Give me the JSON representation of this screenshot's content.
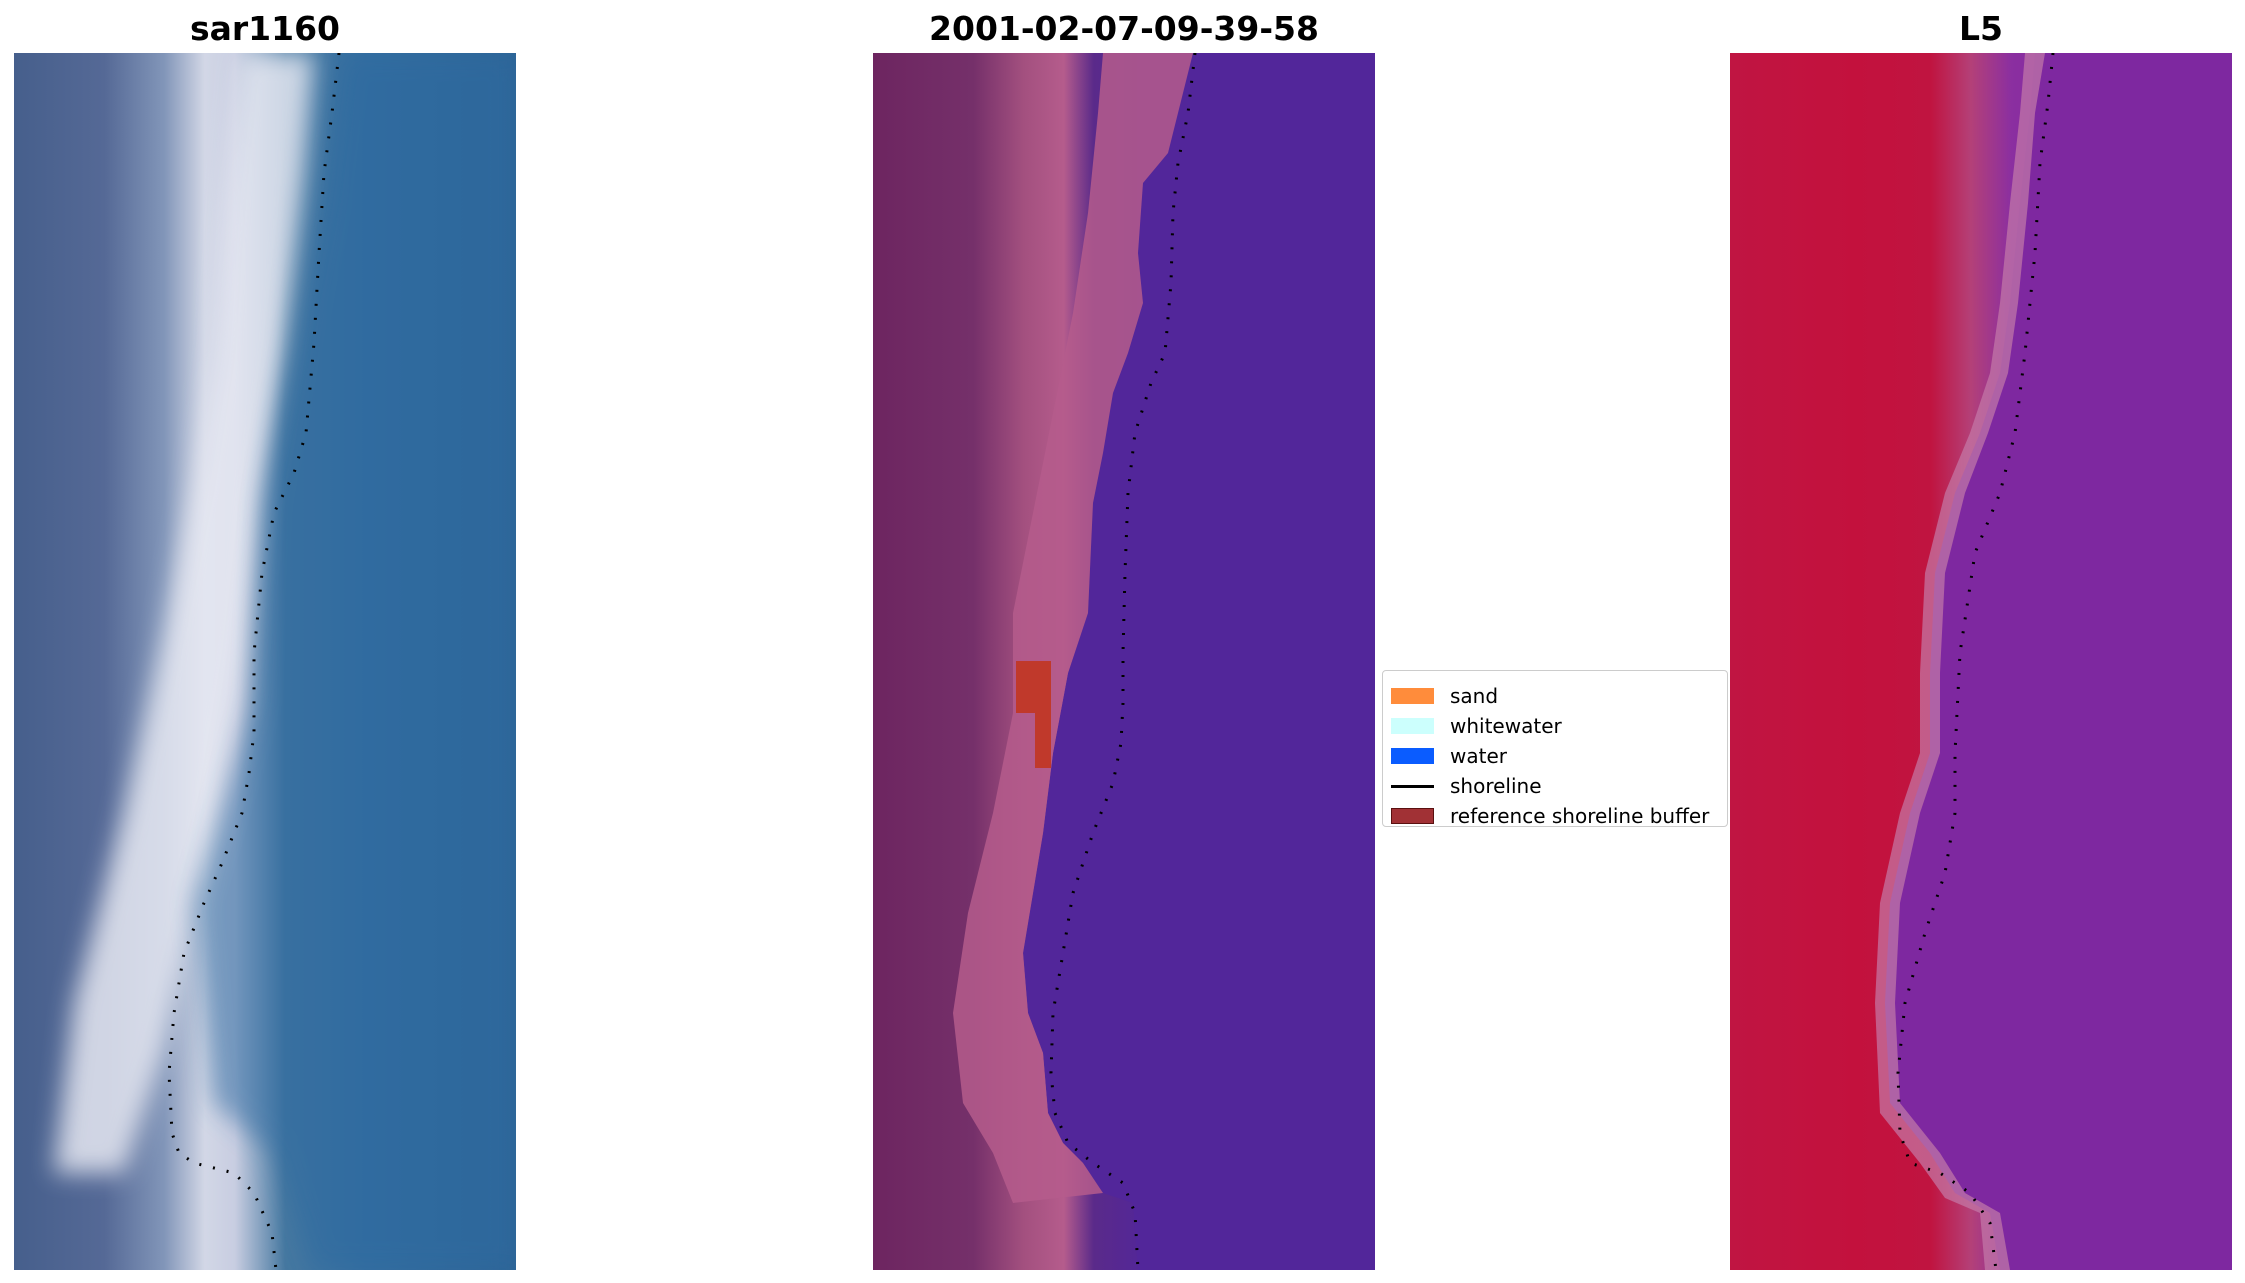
{
  "panels": {
    "left_title": "sar1160",
    "middle_title": "2001-02-07-09-39-58",
    "right_title": "L5"
  },
  "legend": {
    "items": [
      {
        "label": "sand",
        "color": "#ff8c3b",
        "kind": "patch"
      },
      {
        "label": "whitewater",
        "color": "#ccfffd",
        "kind": "patch"
      },
      {
        "label": "water",
        "color": "#0a5cff",
        "kind": "patch"
      },
      {
        "label": "shoreline",
        "color": "#000000",
        "kind": "line"
      },
      {
        "label": "reference shoreline buffer",
        "color": "#a13135",
        "kind": "patch",
        "edge": "#5a1010"
      }
    ]
  },
  "colors": {
    "rgb_surf": "#e6e8f2",
    "rgb_sea": "#2f6aa0",
    "class_land": "#6d2560",
    "class_beach": "#b55c8c",
    "class_water": "#52269a",
    "buffer_patch": "#c0392b",
    "index_land": "#c3113d",
    "index_water": "#7e28a0",
    "shoreline": "#000000"
  }
}
